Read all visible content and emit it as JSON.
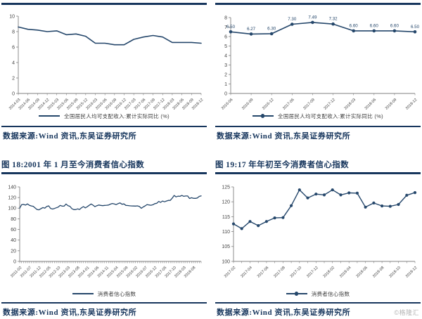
{
  "colors": {
    "line": "#25476b",
    "heading": "#17365d",
    "rule": "#17365d",
    "axis": "#808080",
    "tick_text": "#3f3f3f",
    "point_label_text": "#25476b",
    "watermark_text": "#b5b5b5",
    "background": "#ffffff"
  },
  "figures": {
    "top_left": {
      "legend": "全国居民人均可支配收入:累计实际同比 (%)",
      "source": "数据来源:Wind 资讯,东吴证券研究所"
    },
    "top_right": {
      "legend": "全国居民人均可支配收入:累计实际同比 (%)",
      "source": "数据来源:Wind 资讯,东吴证券研究所"
    },
    "bottom_left": {
      "heading": "图 18:2001 年 1 月至今消费者信心指数",
      "legend": "消费者信心指数",
      "source": "数据来源:Wind 资讯,东吴证券研究所"
    },
    "bottom_right": {
      "heading": "图 19:17 年年初至今消费者信心指数",
      "legend": "消费者信心指数",
      "source": "数据来源:Wind 资讯,东吴证券研究所",
      "watermark": "©格隆汇"
    }
  },
  "chart_data": [
    {
      "id": "top_left",
      "type": "line",
      "title": "",
      "series": [
        {
          "name": "全国居民人均可支配收入:累计实际同比 (%)",
          "values": [
            8.6,
            8.3,
            8.2,
            8.0,
            8.1,
            7.6,
            7.7,
            7.4,
            6.5,
            6.5,
            6.3,
            6.3,
            7.0,
            7.3,
            7.5,
            7.3,
            6.6,
            6.6,
            6.6,
            6.5
          ]
        }
      ],
      "x_tick_labels": [
        "2014-03",
        "2014-06",
        "2014-09",
        "2014-12",
        "2015-03",
        "2015-06",
        "2015-09",
        "2015-12",
        "2016-03",
        "2016-06",
        "2016-09",
        "2016-12",
        "2017-03",
        "2017-06",
        "2017-09",
        "2017-12",
        "2018-03",
        "2018-06",
        "2018-09",
        "2018-12"
      ],
      "x_tick_positions": [
        0,
        1,
        2,
        3,
        4,
        5,
        6,
        7,
        8,
        9,
        10,
        11,
        12,
        13,
        14,
        15,
        16,
        17,
        18,
        19
      ],
      "ylim": [
        0,
        10
      ],
      "yticks": [
        0,
        2,
        4,
        6,
        8,
        10
      ],
      "markers": false,
      "point_labels": null,
      "grid": false,
      "legend_position": "bottom"
    },
    {
      "id": "top_right",
      "type": "line",
      "title": "",
      "series": [
        {
          "name": "全国居民人均可支配收入:累计实际同比 (%)",
          "values": [
            6.5,
            6.27,
            6.3,
            7.3,
            7.49,
            7.32,
            6.6,
            6.6,
            6.6,
            6.5
          ]
        }
      ],
      "x_tick_labels": [
        "2016-06",
        "2016-09",
        "2016-12",
        "2017-06",
        "2017-09",
        "2017-12",
        "2018-03",
        "2018-06",
        "2018-09",
        "2018-12"
      ],
      "x_tick_positions": [
        0,
        1,
        2,
        3,
        4,
        5,
        6,
        7,
        8,
        9
      ],
      "ylim": [
        0,
        8
      ],
      "yticks": [
        0,
        1,
        2,
        3,
        4,
        5,
        6,
        7,
        8
      ],
      "markers": true,
      "point_labels": [
        "6.50",
        "6.27",
        "6.30",
        "7.30",
        "7.49",
        "7.32",
        "6.60",
        "6.60",
        "6.60",
        "6.50"
      ],
      "grid": false,
      "legend_position": "bottom"
    },
    {
      "id": "bottom_left",
      "type": "line",
      "title": "图 18:2001 年 1 月至今消费者信心指数",
      "series": [
        {
          "name": "消费者信心指数",
          "values": [
            100.0,
            106.6,
            107.1,
            105.8,
            108.1,
            105.5,
            104.2,
            103.6,
            100.4,
            97.5,
            97.0,
            99.0,
            101.2,
            100.1,
            103.2,
            104.3,
            99.6,
            98.4,
            99.4,
            100.8,
            102.2,
            105.2,
            103.8,
            103.8,
            107.9,
            104.7,
            103.5,
            99.2,
            97.4,
            97.3,
            98.6,
            97.6,
            100.6,
            103.0,
            100.6,
            102.7,
            105.4,
            107.9,
            105.6,
            102.9,
            104.8,
            105.9,
            105.2,
            104.7,
            105.2,
            105.5,
            105.9,
            107.6,
            108.8,
            107.9,
            106.7,
            108.7,
            109.9,
            107.4,
            108.1,
            105.2,
            105.0,
            104.5,
            104.2,
            104.1,
            104.0,
            104.4,
            103.1,
            99.9,
            102.4,
            104.3,
            106.8,
            106.0,
            105.5,
            106.5,
            108.5,
            109.2,
            112.6,
            111.0,
            113.4,
            112.0,
            113.4,
            114.6,
            114.7,
            118.7,
            124.0,
            121.3,
            122.6,
            122.3,
            124.0,
            122.3,
            123.0,
            122.9,
            118.2,
            119.6,
            118.6,
            118.5,
            119.1,
            122.2,
            123.1
          ]
        }
      ],
      "x_tick_labels": [
        "2011-02",
        "2011-07",
        "2011-12",
        "2012-05",
        "2012-10",
        "2013-03",
        "2013-08",
        "2014-01",
        "2014-06",
        "2014-11",
        "2015-04",
        "2015-09",
        "2016-02",
        "2016-07",
        "2016-12",
        "2017-05",
        "2017-10",
        "2018-03",
        "2018-08"
      ],
      "x_tick_positions": [
        0,
        5,
        10,
        15,
        20,
        25,
        30,
        35,
        40,
        45,
        50,
        55,
        60,
        65,
        70,
        75,
        80,
        85,
        90
      ],
      "ylim": [
        0,
        140
      ],
      "yticks": [
        0,
        20,
        40,
        60,
        80,
        100,
        120,
        140
      ],
      "markers": false,
      "point_labels": null,
      "grid": false,
      "legend_position": "bottom"
    },
    {
      "id": "bottom_right",
      "type": "line",
      "title": "图 19:17 年年初至今消费者信心指数",
      "series": [
        {
          "name": "消费者信心指数",
          "values": [
            112.6,
            111.0,
            113.4,
            112.0,
            113.4,
            114.6,
            114.7,
            118.7,
            124.0,
            121.3,
            122.6,
            122.3,
            124.0,
            122.3,
            123.0,
            122.9,
            118.2,
            119.6,
            118.6,
            118.5,
            119.1,
            122.2,
            123.1
          ]
        }
      ],
      "x_tick_labels": [
        "2017-02",
        "2017-04",
        "2017-06",
        "2017-08",
        "2017-10",
        "2017-12",
        "2018-02",
        "2018-04",
        "2018-06",
        "2018-08",
        "2018-10",
        "2018-12"
      ],
      "x_tick_positions": [
        0,
        2,
        4,
        6,
        8,
        10,
        12,
        14,
        16,
        18,
        20,
        22
      ],
      "ylim": [
        100,
        125
      ],
      "yticks": [
        100,
        105,
        110,
        115,
        120,
        125
      ],
      "markers": true,
      "point_labels": null,
      "grid": false,
      "legend_position": "bottom"
    }
  ]
}
